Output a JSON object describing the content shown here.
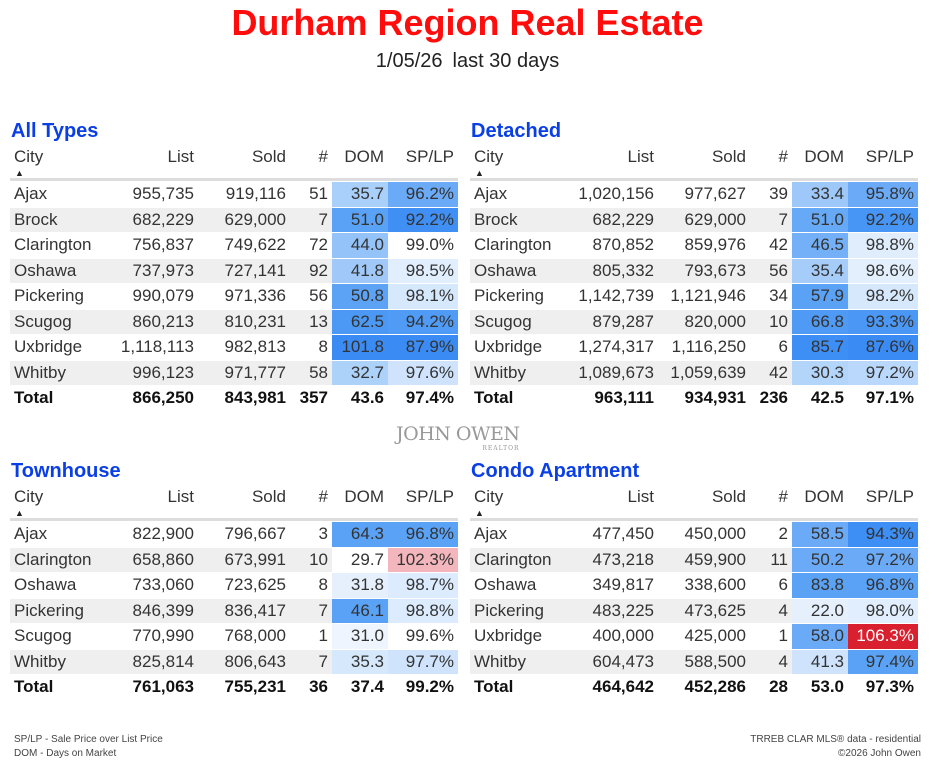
{
  "header": {
    "title": "Durham Region Real Estate",
    "date": "1/05/26",
    "period": "last 30 days"
  },
  "columns": [
    "City",
    "List",
    "Sold",
    "#",
    "DOM",
    "SP/LP"
  ],
  "sort_icon": "triangle-up-icon",
  "colors": {
    "title": "#ff0d0d",
    "section_title": "#0a3fe6",
    "high_sp_lp": "#d9202e"
  },
  "tables": [
    {
      "id": "all-types",
      "title": "All Types",
      "rows": [
        [
          "Ajax",
          "955,735",
          "919,116",
          "51",
          "35.7",
          "96.2%",
          "#a9d0fa",
          "#6aaaf7"
        ],
        [
          "Brock",
          "682,229",
          "629,000",
          "7",
          "51.0",
          "92.2%",
          "#5aa2f6",
          "#3f8ff5"
        ],
        [
          "Clarington",
          "756,837",
          "749,622",
          "72",
          "44.0",
          "99.0%",
          "#93c3f9",
          "#ffffff"
        ],
        [
          "Oshawa",
          "737,973",
          "727,141",
          "92",
          "41.8",
          "98.5%",
          "#a0c9f9",
          "#e1eefd"
        ],
        [
          "Pickering",
          "990,079",
          "971,336",
          "56",
          "50.8",
          "98.1%",
          "#5ca3f6",
          "#d5e8fc"
        ],
        [
          "Scugog",
          "860,213",
          "810,231",
          "13",
          "62.5",
          "94.2%",
          "#4b98f5",
          "#4f9bf5"
        ],
        [
          "Uxbridge",
          "1,118,113",
          "982,813",
          "8",
          "101.8",
          "87.9%",
          "#3a8cf4",
          "#3a8cf4"
        ],
        [
          "Whitby",
          "996,123",
          "971,777",
          "58",
          "32.7",
          "97.6%",
          "#add2fa",
          "#cfe4fc"
        ]
      ],
      "total": [
        "Total",
        "866,250",
        "843,981",
        "357",
        "43.6",
        "97.4%"
      ]
    },
    {
      "id": "detached",
      "title": "Detached",
      "rows": [
        [
          "Ajax",
          "1,020,156",
          "977,627",
          "39",
          "33.4",
          "95.8%",
          "#9dc8f9",
          "#6aaaf7"
        ],
        [
          "Brock",
          "682,229",
          "629,000",
          "7",
          "51.0",
          "92.2%",
          "#66a9f7",
          "#4796f5"
        ],
        [
          "Clarington",
          "870,852",
          "859,976",
          "42",
          "46.5",
          "98.8%",
          "#73b0f7",
          "#dfedfd"
        ],
        [
          "Oshawa",
          "805,332",
          "793,673",
          "56",
          "35.4",
          "98.6%",
          "#a6cdfa",
          "#e3effd"
        ],
        [
          "Pickering",
          "1,142,739",
          "1,121,946",
          "34",
          "57.9",
          "98.2%",
          "#5aa2f6",
          "#d6e8fc"
        ],
        [
          "Scugog",
          "879,287",
          "820,000",
          "10",
          "66.8",
          "93.3%",
          "#4e9af5",
          "#4a97f5"
        ],
        [
          "Uxbridge",
          "1,274,317",
          "1,116,250",
          "6",
          "85.7",
          "87.6%",
          "#3d8ef5",
          "#3a8cf4"
        ],
        [
          "Whitby",
          "1,089,673",
          "1,059,639",
          "42",
          "30.3",
          "97.2%",
          "#b3d5fa",
          "#b9d8fb"
        ]
      ],
      "total": [
        "Total",
        "963,111",
        "934,931",
        "236",
        "42.5",
        "97.1%"
      ]
    },
    {
      "id": "townhouse",
      "title": "Townhouse",
      "rows": [
        [
          "Ajax",
          "822,900",
          "796,667",
          "3",
          "64.3",
          "96.8%",
          "#5aa2f6",
          "#5aa2f6"
        ],
        [
          "Clarington",
          "658,860",
          "673,991",
          "10",
          "29.7",
          "102.3%",
          "#ffffff",
          "#f4b6bd"
        ],
        [
          "Oshawa",
          "733,060",
          "723,625",
          "8",
          "31.8",
          "98.7%",
          "#e6f0fd",
          "#dcebfd"
        ],
        [
          "Pickering",
          "846,399",
          "836,417",
          "7",
          "46.1",
          "98.8%",
          "#5aa2f6",
          "#dcebfd"
        ],
        [
          "Scugog",
          "770,990",
          "768,000",
          "1",
          "31.0",
          "99.6%",
          "#eef5fe",
          "#ffffff"
        ],
        [
          "Whitby",
          "825,814",
          "806,643",
          "7",
          "35.3",
          "97.7%",
          "#d5e8fc",
          "#cfe4fc"
        ]
      ],
      "total": [
        "Total",
        "761,063",
        "755,231",
        "36",
        "37.4",
        "99.2%"
      ]
    },
    {
      "id": "condo-apartment",
      "title": "Condo Apartment",
      "rows": [
        [
          "Ajax",
          "477,450",
          "450,000",
          "2",
          "58.5",
          "94.3%",
          "#6aaaf7",
          "#3d8ef5"
        ],
        [
          "Clarington",
          "473,218",
          "459,900",
          "11",
          "50.2",
          "97.2%",
          "#6aaaf7",
          "#6aaaf7"
        ],
        [
          "Oshawa",
          "349,817",
          "338,600",
          "6",
          "83.8",
          "96.8%",
          "#5aa2f6",
          "#5aa2f6"
        ],
        [
          "Pickering",
          "483,225",
          "473,625",
          "4",
          "22.0",
          "98.0%",
          "#e6f0fd",
          "#e1eefd"
        ],
        [
          "Uxbridge",
          "400,000",
          "425,000",
          "1",
          "58.0",
          "106.3%",
          "#6aaaf7",
          "#d9202e"
        ],
        [
          "Whitby",
          "604,473",
          "588,500",
          "4",
          "41.3",
          "97.4%",
          "#cfe4fc",
          "#5aa2f6"
        ]
      ],
      "total": [
        "Total",
        "464,642",
        "452,286",
        "28",
        "53.0",
        "97.3%"
      ]
    }
  ],
  "logo": {
    "name": "JOHN OWEN",
    "sub": "REALTOR"
  },
  "footer": {
    "note1": "SP/LP - Sale Price over List Price",
    "note2": "DOM - Days on Market",
    "source": "TRREB CLAR MLS® data - residential",
    "copyright": "©2026 John Owen"
  }
}
